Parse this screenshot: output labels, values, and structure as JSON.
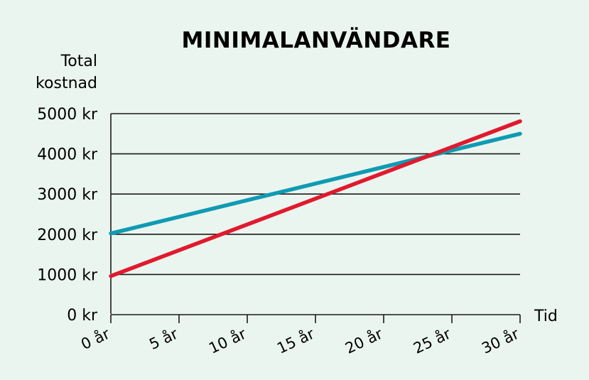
{
  "chart_data": {
    "type": "line",
    "title": "MINIMALANVÄNDARE",
    "ylabel_lines": [
      "Total",
      "kostnad"
    ],
    "xlabel": "Tid",
    "x": [
      0,
      30
    ],
    "xlim": [
      0,
      30
    ],
    "ylim": [
      0,
      5000
    ],
    "yticks": [
      0,
      1000,
      2000,
      3000,
      4000,
      5000
    ],
    "ytick_labels": [
      "0 kr",
      "1000 kr",
      "2000 kr",
      "3000 kr",
      "4000 kr",
      "5000 kr"
    ],
    "xticks": [
      0,
      5,
      10,
      15,
      20,
      25,
      30
    ],
    "xtick_labels": [
      "0 år",
      "5 år",
      "10 år",
      "15 år",
      "20 år",
      "25 år",
      "30 år"
    ],
    "grid": true,
    "series": [
      {
        "color": "#0f9bb3",
        "values": [
          2020,
          4500
        ]
      },
      {
        "color": "#e01a2e",
        "values": [
          960,
          4810
        ]
      }
    ]
  }
}
